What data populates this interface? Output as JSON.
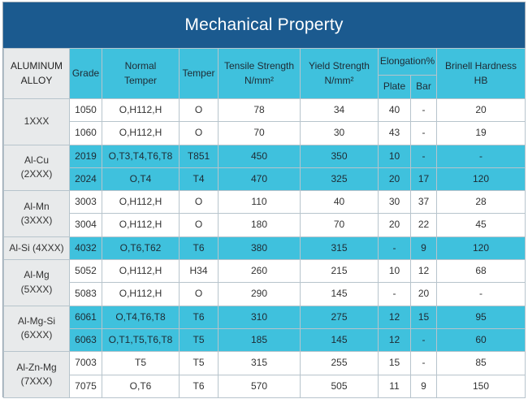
{
  "title": "Mechanical Property",
  "headers": {
    "alloy": [
      "ALUMINUM",
      "ALLOY"
    ],
    "grade": "Grade",
    "normal_temper": [
      "Normal",
      "Temper"
    ],
    "temper": "Temper",
    "tensile": [
      "Tensile Strength",
      "N/mm²"
    ],
    "yield": [
      "Yield Strength",
      "N/mm²"
    ],
    "elongation": "Elongation%",
    "plate": "Plate",
    "bar": "Bar",
    "brinell": [
      "Brinell Hardness",
      "HB"
    ]
  },
  "groups": [
    {
      "name": [
        "1XXX"
      ],
      "rows": [
        {
          "grade": "1050",
          "normal": "O,H112,H",
          "temper": "O",
          "tensile": "78",
          "yield": "34",
          "plate": "40",
          "bar": "-",
          "hb": "20",
          "style": "white"
        },
        {
          "grade": "1060",
          "normal": "O,H112,H",
          "temper": "O",
          "tensile": "70",
          "yield": "30",
          "plate": "43",
          "bar": "-",
          "hb": "19",
          "style": "white"
        }
      ]
    },
    {
      "name": [
        "Al-Cu",
        "(2XXX)"
      ],
      "rows": [
        {
          "grade": "2019",
          "normal": "O,T3,T4,T6,T8",
          "temper": "T851",
          "tensile": "450",
          "yield": "350",
          "plate": "10",
          "bar": "-",
          "hb": "-",
          "style": "blue"
        },
        {
          "grade": "2024",
          "normal": "O,T4",
          "temper": "T4",
          "tensile": "470",
          "yield": "325",
          "plate": "20",
          "bar": "17",
          "hb": "120",
          "style": "blue"
        }
      ]
    },
    {
      "name": [
        "Al-Mn",
        "(3XXX)"
      ],
      "rows": [
        {
          "grade": "3003",
          "normal": "O,H112,H",
          "temper": "O",
          "tensile": "110",
          "yield": "40",
          "plate": "30",
          "bar": "37",
          "hb": "28",
          "style": "white"
        },
        {
          "grade": "3004",
          "normal": "O,H112,H",
          "temper": "O",
          "tensile": "180",
          "yield": "70",
          "plate": "20",
          "bar": "22",
          "hb": "45",
          "style": "white"
        }
      ]
    },
    {
      "name": [
        "Al-Si (4XXX)"
      ],
      "rows": [
        {
          "grade": "4032",
          "normal": "O,T6,T62",
          "temper": "T6",
          "tensile": "380",
          "yield": "315",
          "plate": "-",
          "bar": "9",
          "hb": "120",
          "style": "blue"
        }
      ]
    },
    {
      "name": [
        "Al-Mg",
        "(5XXX)"
      ],
      "rows": [
        {
          "grade": "5052",
          "normal": "O,H112,H",
          "temper": "H34",
          "tensile": "260",
          "yield": "215",
          "plate": "10",
          "bar": "12",
          "hb": "68",
          "style": "white"
        },
        {
          "grade": "5083",
          "normal": "O,H112,H",
          "temper": "O",
          "tensile": "290",
          "yield": "145",
          "plate": "-",
          "bar": "20",
          "hb": "-",
          "style": "white"
        }
      ]
    },
    {
      "name": [
        "Al-Mg-Si",
        "(6XXX)"
      ],
      "rows": [
        {
          "grade": "6061",
          "normal": "O,T4,T6,T8",
          "temper": "T6",
          "tensile": "310",
          "yield": "275",
          "plate": "12",
          "bar": "15",
          "hb": "95",
          "style": "blue"
        },
        {
          "grade": "6063",
          "normal": "O,T1,T5,T6,T8",
          "temper": "T5",
          "tensile": "185",
          "yield": "145",
          "plate": "12",
          "bar": "-",
          "hb": "60",
          "style": "blue"
        }
      ]
    },
    {
      "name": [
        "Al-Zn-Mg",
        "(7XXX)"
      ],
      "rows": [
        {
          "grade": "7003",
          "normal": "T5",
          "temper": "T5",
          "tensile": "315",
          "yield": "255",
          "plate": "15",
          "bar": "-",
          "hb": "85",
          "style": "white"
        },
        {
          "grade": "7075",
          "normal": "O,T6",
          "temper": "T6",
          "tensile": "570",
          "yield": "505",
          "plate": "11",
          "bar": "9",
          "hb": "150",
          "style": "white"
        }
      ]
    }
  ],
  "colors": {
    "title_bg": "#1b5a8f",
    "header_bg": "#3fc1dd",
    "group_bg": "#e8eaeb"
  }
}
